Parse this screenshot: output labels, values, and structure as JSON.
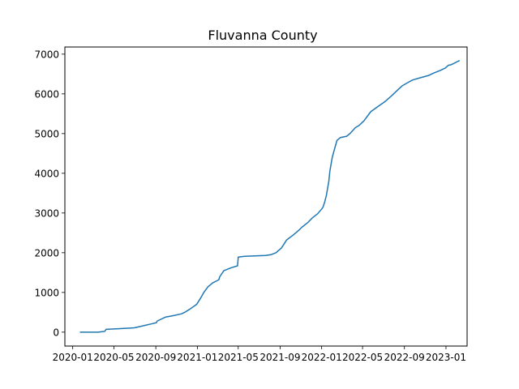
{
  "chart_data": {
    "type": "line",
    "title": "Fluvanna County",
    "xlabel": "",
    "ylabel": "",
    "xlim": [
      "2019-12-09",
      "2023-03-04"
    ],
    "ylim": [
      -350,
      7180
    ],
    "grid": false,
    "x_ticks": [
      "2020-01",
      "2020-05",
      "2020-09",
      "2021-01",
      "2021-05",
      "2021-09",
      "2022-01",
      "2022-05",
      "2022-09",
      "2023-01"
    ],
    "y_ticks": [
      0,
      1000,
      2000,
      3000,
      4000,
      5000,
      6000,
      7000
    ],
    "series": [
      {
        "color": "#1f77b4",
        "x": [
          "2020-01-22",
          "2020-03-15",
          "2020-04-04",
          "2020-04-08",
          "2020-05-20",
          "2020-06-30",
          "2020-07-31",
          "2020-08-20",
          "2020-09-03",
          "2020-09-05",
          "2020-09-30",
          "2020-10-25",
          "2020-11-15",
          "2020-11-25",
          "2020-12-10",
          "2020-12-30",
          "2021-01-10",
          "2021-01-20",
          "2021-02-01",
          "2021-02-15",
          "2021-03-01",
          "2021-03-05",
          "2021-03-08",
          "2021-03-20",
          "2021-04-10",
          "2021-04-29",
          "2021-05-01",
          "2021-05-20",
          "2021-06-20",
          "2021-07-20",
          "2021-08-05",
          "2021-08-20",
          "2021-09-05",
          "2021-09-20",
          "2021-10-10",
          "2021-10-25",
          "2021-11-05",
          "2021-11-20",
          "2021-12-05",
          "2021-12-20",
          "2022-01-01",
          "2022-01-05",
          "2022-01-10",
          "2022-01-15",
          "2022-01-18",
          "2022-01-22",
          "2022-01-25",
          "2022-02-01",
          "2022-02-10",
          "2022-02-15",
          "2022-02-25",
          "2022-03-08",
          "2022-03-15",
          "2022-03-25",
          "2022-04-10",
          "2022-04-20",
          "2022-05-05",
          "2022-05-25",
          "2022-06-15",
          "2022-07-05",
          "2022-07-25",
          "2022-08-10",
          "2022-08-25",
          "2022-09-10",
          "2022-09-25",
          "2022-10-15",
          "2022-11-10",
          "2022-11-25",
          "2022-12-15",
          "2022-12-30",
          "2023-01-08",
          "2023-01-15",
          "2023-01-25",
          "2023-02-05",
          "2023-02-10"
        ],
        "y": [
          0,
          0,
          20,
          70,
          90,
          110,
          170,
          210,
          240,
          280,
          380,
          420,
          460,
          500,
          580,
          700,
          850,
          1000,
          1140,
          1240,
          1300,
          1320,
          1400,
          1550,
          1620,
          1670,
          1890,
          1910,
          1920,
          1930,
          1950,
          2000,
          2120,
          2320,
          2450,
          2560,
          2650,
          2750,
          2880,
          2980,
          3100,
          3150,
          3280,
          3450,
          3600,
          3800,
          4050,
          4400,
          4680,
          4830,
          4900,
          4920,
          4930,
          5000,
          5150,
          5200,
          5320,
          5550,
          5680,
          5800,
          5950,
          6080,
          6200,
          6280,
          6350,
          6400,
          6460,
          6520,
          6590,
          6650,
          6720,
          6730,
          6770,
          6820,
          6840
        ]
      }
    ]
  }
}
